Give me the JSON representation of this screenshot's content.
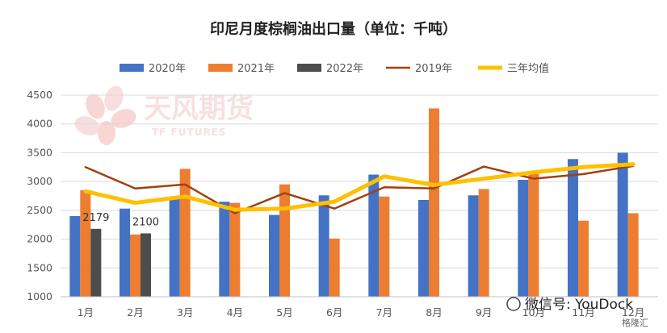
{
  "chart_data": {
    "type": "bar",
    "title": "印尼月度棕榈油出口量（单位：千吨）",
    "categories": [
      "1月",
      "2月",
      "3月",
      "4月",
      "5月",
      "6月",
      "7月",
      "8月",
      "9月",
      "10月",
      "11月",
      "12月"
    ],
    "ylim": [
      1000,
      4500
    ],
    "yticks": [
      1000,
      1500,
      2000,
      2500,
      3000,
      3500,
      4000,
      4500
    ],
    "grid": true,
    "legend_position": "top",
    "series": [
      {
        "name": "2020年",
        "kind": "bar",
        "color": "#4472c4",
        "values": [
          2400,
          2530,
          2700,
          2650,
          2420,
          2760,
          3120,
          2680,
          2760,
          3030,
          3390,
          3500
        ]
      },
      {
        "name": "2021年",
        "kind": "bar",
        "color": "#ed7d31",
        "values": [
          2850,
          2080,
          3220,
          2630,
          2950,
          2010,
          2740,
          4270,
          2870,
          3180,
          2320,
          2450
        ]
      },
      {
        "name": "2022年",
        "kind": "bar",
        "color": "#4d4d4d",
        "values": [
          2179,
          2100,
          null,
          null,
          null,
          null,
          null,
          null,
          null,
          null,
          null,
          null
        ]
      },
      {
        "name": "2019年",
        "kind": "line",
        "color": "#a0410f",
        "values": [
          3250,
          2880,
          2950,
          2450,
          2800,
          2530,
          2900,
          2880,
          3260,
          3050,
          3130,
          3270
        ]
      },
      {
        "name": "三年均值",
        "kind": "line",
        "color": "#ffc000",
        "values": [
          2830,
          2630,
          2740,
          2510,
          2530,
          2650,
          3090,
          2940,
          3050,
          3160,
          3250,
          3300
        ]
      }
    ],
    "data_labels": [
      {
        "series": "2022年",
        "category": "1月",
        "text": "2179"
      },
      {
        "series": "2022年",
        "category": "2月",
        "text": "2100"
      }
    ]
  },
  "watermark": {
    "logo_text": "天风期货",
    "logo_sub": "TF FUTURES",
    "wechat": "微信号: YouDock",
    "brand": "格隆汇"
  }
}
